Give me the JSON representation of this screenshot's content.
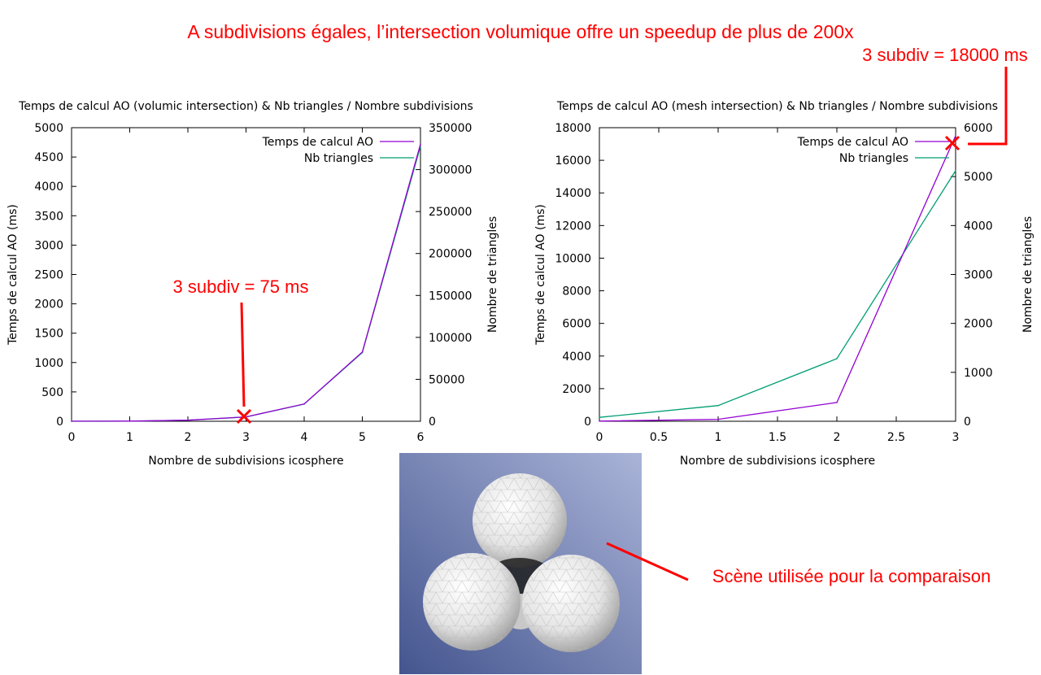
{
  "headline": "A subdivisions égales, l’intersection volumique offre un speedup de plus de 200x",
  "annotations": {
    "left_callout": "3 subdiv = 75 ms",
    "right_callout": "3 subdiv = 18000 ms",
    "scene_caption": "Scène utilisée pour la comparaison"
  },
  "colors": {
    "annotation_red": "#ff0000",
    "series_time": "#9400d3",
    "series_triangles": "#009e73",
    "scene_bg_top": "#aab4d8",
    "scene_bg_bottom": "#44558f"
  },
  "chart_data": [
    {
      "type": "line",
      "title": "Temps de calcul AO (volumic intersection) & Nb triangles / Nombre subdivisions",
      "xlabel": "Nombre de subdivisions icosphere",
      "ylabel": "Temps de calcul AO (ms)",
      "y2label": "Nombre de triangles",
      "xlim": [
        0,
        6
      ],
      "ylim": [
        0,
        5000
      ],
      "y2lim": [
        0,
        350000
      ],
      "xticks": [
        "0",
        "1",
        "2",
        "3",
        "4",
        "5",
        "6"
      ],
      "yticks": [
        "0",
        "500",
        "1000",
        "1500",
        "2000",
        "2500",
        "3000",
        "3500",
        "4000",
        "4500",
        "5000"
      ],
      "y2ticks": [
        "0",
        "50000",
        "100000",
        "150000",
        "200000",
        "250000",
        "300000",
        "350000"
      ],
      "legend": "top-right",
      "x": [
        0,
        1,
        2,
        3,
        4,
        5,
        6
      ],
      "series": [
        {
          "name": "Temps de calcul AO",
          "axis": "y",
          "values": [
            1,
            3,
            18,
            75,
            295,
            1180,
            4720
          ]
        },
        {
          "name": "Nb triangles",
          "axis": "y2",
          "values": [
            20,
            80,
            1280,
            5120,
            20480,
            81920,
            327680
          ]
        }
      ]
    },
    {
      "type": "line",
      "title": "Temps de calcul AO (mesh intersection) & Nb triangles / Nombre subdivisions",
      "xlabel": "Nombre de subdivisions icosphere",
      "ylabel": "Temps de calcul AO (ms)",
      "y2label": "Nombre de triangles",
      "xlim": [
        0,
        3
      ],
      "ylim": [
        0,
        18000
      ],
      "y2lim": [
        0,
        6000
      ],
      "xticks": [
        "0",
        "0.5",
        "1",
        "1.5",
        "2",
        "2.5",
        "3"
      ],
      "yticks": [
        "0",
        "2000",
        "4000",
        "6000",
        "8000",
        "10000",
        "12000",
        "14000",
        "16000",
        "18000"
      ],
      "y2ticks": [
        "0",
        "1000",
        "2000",
        "3000",
        "4000",
        "5000",
        "6000"
      ],
      "legend": "top-right",
      "x": [
        0,
        1,
        2,
        3
      ],
      "series": [
        {
          "name": "Temps de calcul AO",
          "axis": "y",
          "values": [
            10,
            120,
            1150,
            17500
          ]
        },
        {
          "name": "Nb triangles",
          "axis": "y2",
          "values": [
            80,
            320,
            1280,
            5120
          ]
        }
      ]
    }
  ]
}
